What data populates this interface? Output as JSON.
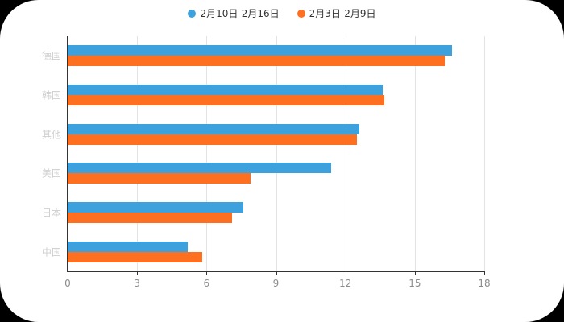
{
  "chart_data": {
    "type": "bar",
    "orientation": "horizontal",
    "title": "",
    "categories": [
      "德国",
      "韩国",
      "其他",
      "美国",
      "日本",
      "中国"
    ],
    "series": [
      {
        "name": "2月10日-2月16日",
        "color": "#3CA1DC",
        "values": [
          16.6,
          13.6,
          12.6,
          11.4,
          7.6,
          5.2
        ]
      },
      {
        "name": "2月3日-2月9日",
        "color": "#FF6F20",
        "values": [
          16.3,
          13.7,
          12.5,
          7.9,
          7.1,
          5.8
        ]
      }
    ],
    "xlabel": "",
    "ylabel": "",
    "xlim": [
      0,
      18
    ],
    "xticks": [
      0,
      3,
      6,
      9,
      12,
      15,
      18
    ],
    "legend_position": "top",
    "grid": true
  },
  "colors": {
    "page_background": "#000000",
    "panel_background": "#ffffff",
    "legend_text": "#333333",
    "category_label": "#cfcfcf",
    "axis_tick_label": "#8c8c8c",
    "axis_line": "#333333",
    "gridline": "#e3e3e3"
  }
}
